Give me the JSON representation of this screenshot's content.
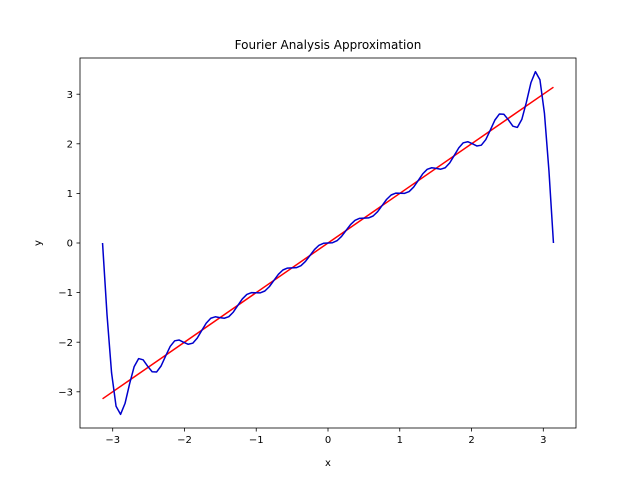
{
  "chart_data": {
    "type": "line",
    "title": "Fourier Analysis Approximation",
    "xlabel": "x",
    "ylabel": "y",
    "xlim": [
      -3.4557,
      3.4557
    ],
    "ylim": [
      -3.7299,
      3.7299
    ],
    "grid": false,
    "x_ticks": [
      -3,
      -2,
      -1,
      0,
      1,
      2,
      3
    ],
    "y_ticks": [
      -3,
      -2,
      -1,
      0,
      1,
      2,
      3
    ],
    "x_tick_labels": [
      "−3",
      "−2",
      "−1",
      "0",
      "1",
      "2",
      "3"
    ],
    "y_tick_labels": [
      "−3",
      "−2",
      "−1",
      "0",
      "1",
      "2",
      "3"
    ],
    "series": [
      {
        "color": "#ff0000",
        "form": "identity",
        "x": [
          -3.14159,
          3.14159
        ],
        "y": [
          -3.14159,
          3.14159
        ]
      },
      {
        "color": "#0000cd",
        "form": "fourier",
        "terms": 12,
        "domain": [
          -3.14159,
          3.14159
        ],
        "samples": 101
      }
    ]
  }
}
